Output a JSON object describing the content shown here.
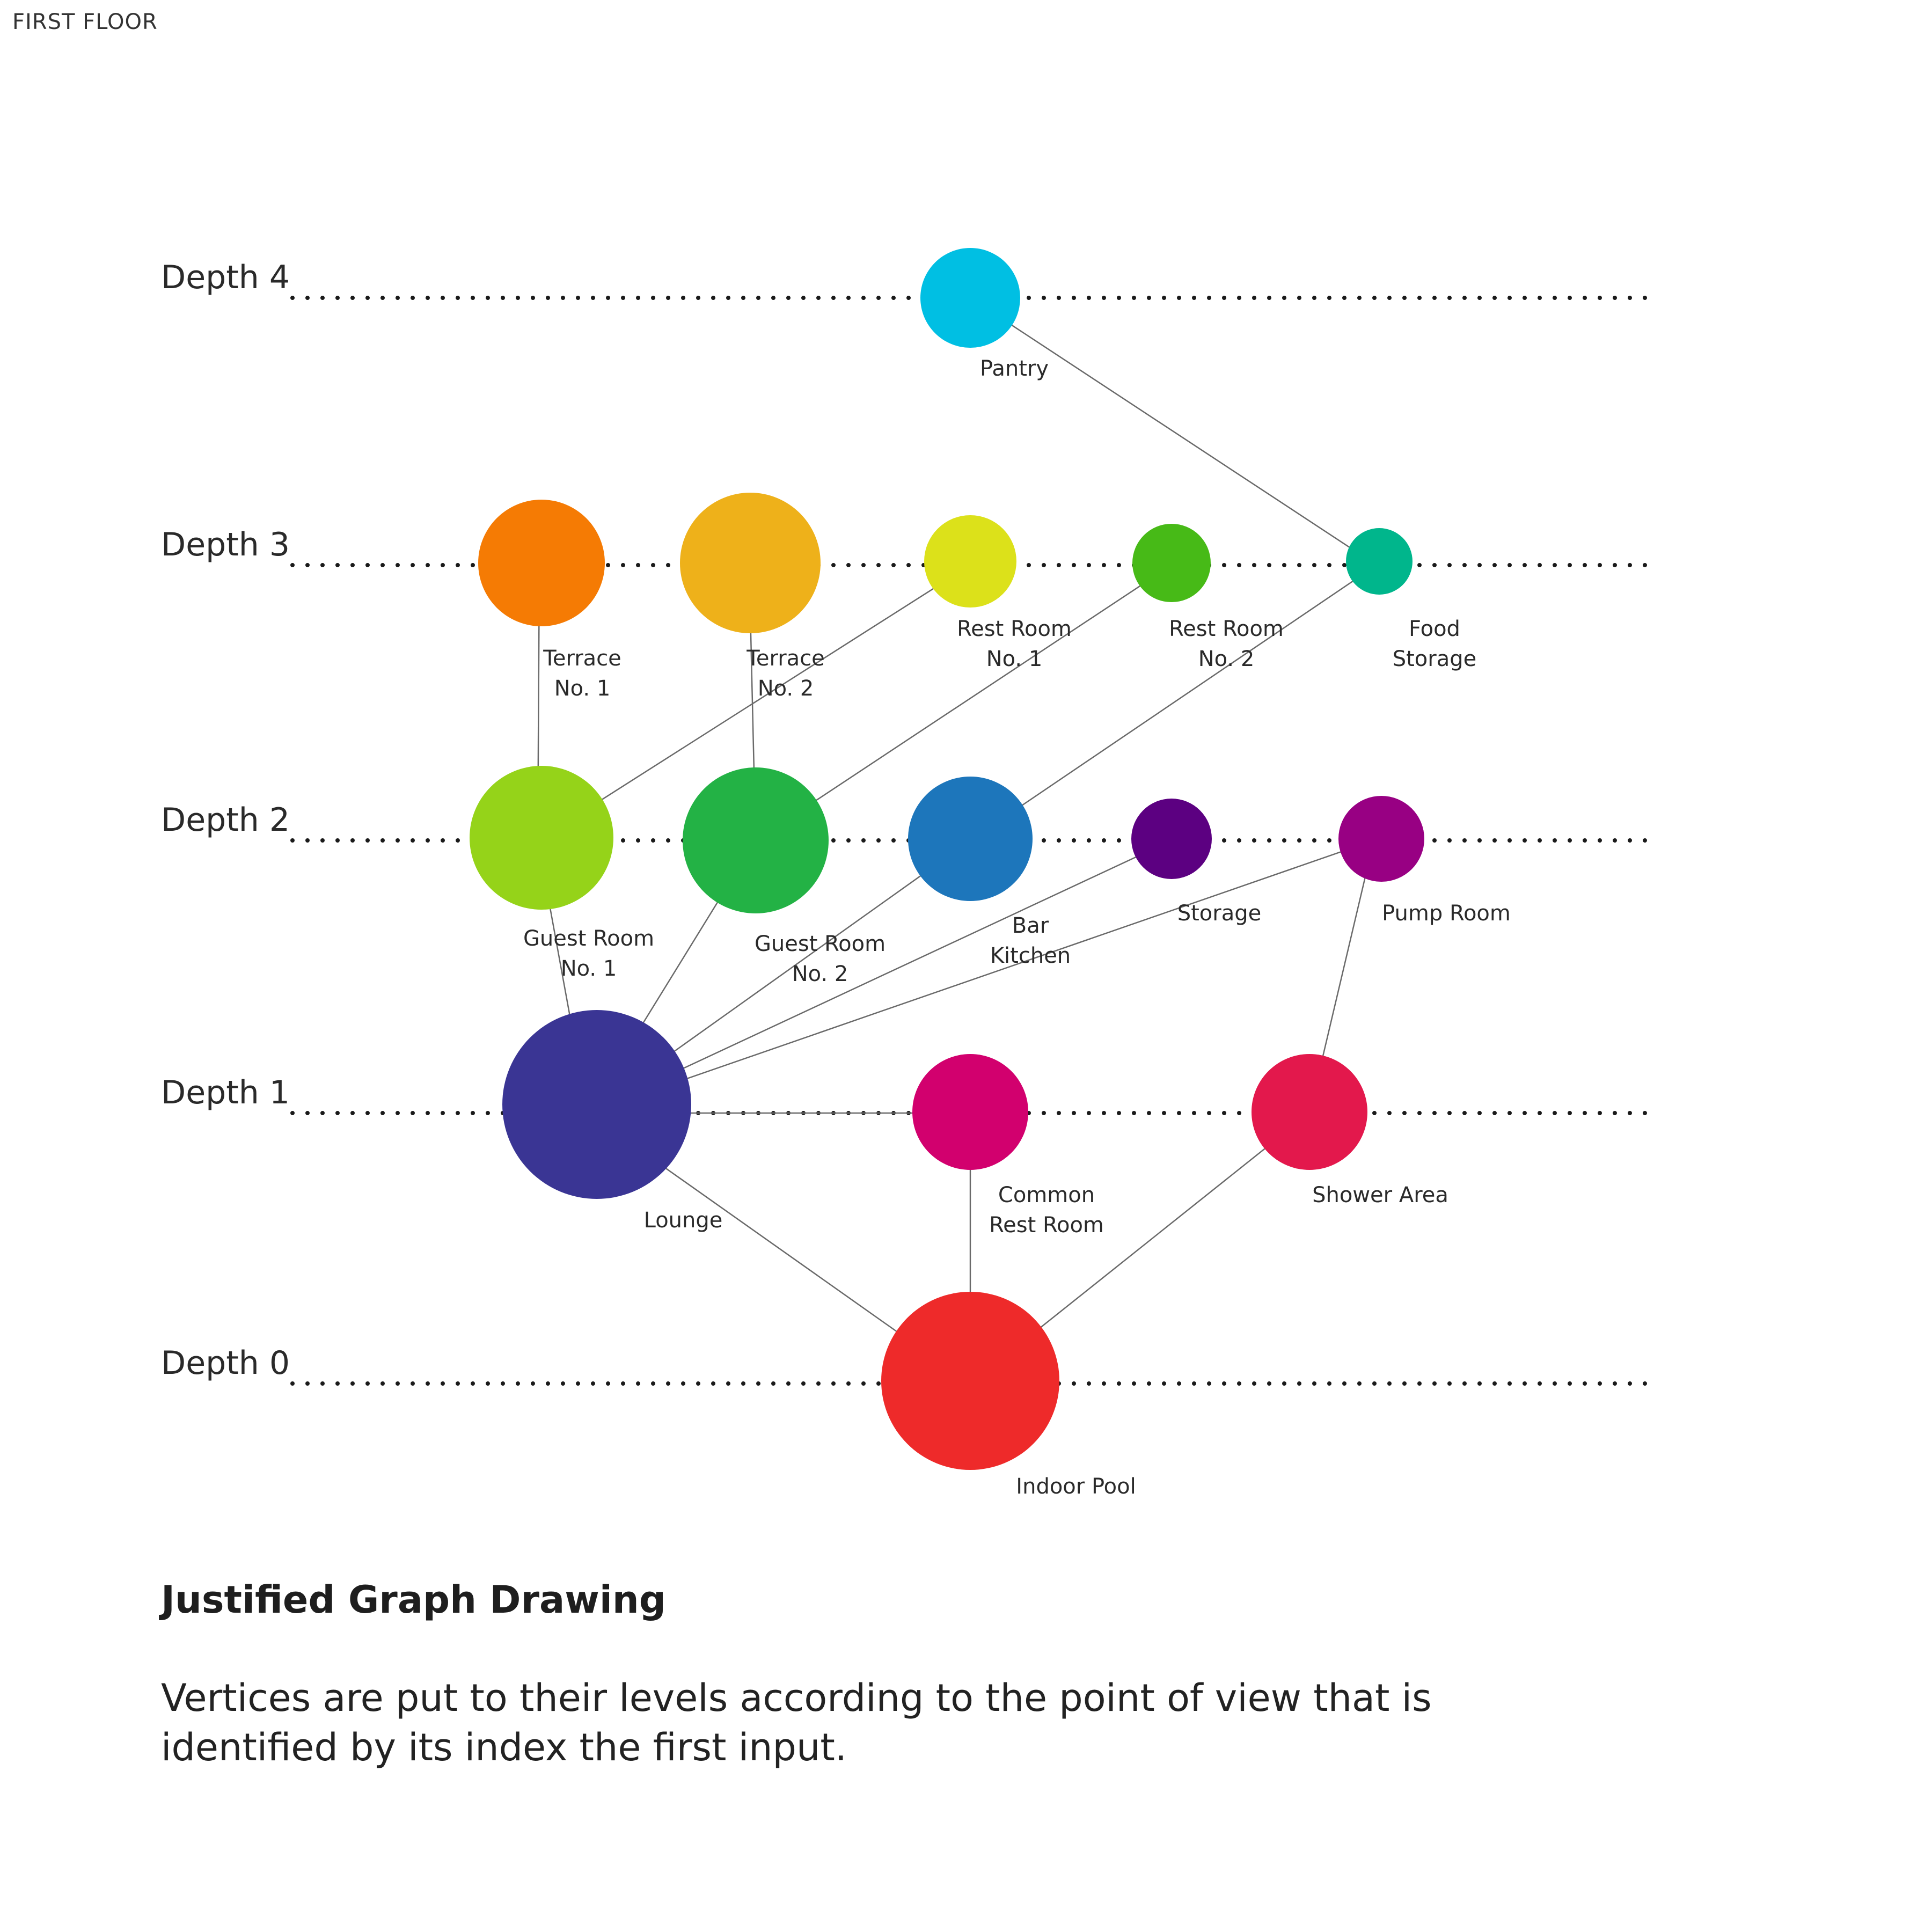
{
  "header": {
    "floor_label": "FIRST FLOOR"
  },
  "levels": [
    {
      "label": "Depth 4"
    },
    {
      "label": "Depth 3"
    },
    {
      "label": "Depth 2"
    },
    {
      "label": "Depth 1"
    },
    {
      "label": "Depth 0"
    }
  ],
  "nodes": [
    {
      "id": "pantry",
      "label": [
        "Pantry"
      ],
      "depth": 4,
      "color": "#00BFE3"
    },
    {
      "id": "terrace-1",
      "label": [
        "Terrace",
        "No. 1"
      ],
      "depth": 3,
      "color": "#F57B04"
    },
    {
      "id": "terrace-2",
      "label": [
        "Terrace",
        "No. 2"
      ],
      "depth": 3,
      "color": "#EEB11A"
    },
    {
      "id": "rest-room-1",
      "label": [
        "Rest Room",
        "No. 1"
      ],
      "depth": 3,
      "color": "#DCE11A"
    },
    {
      "id": "rest-room-2",
      "label": [
        "Rest Room",
        "No. 2"
      ],
      "depth": 3,
      "color": "#47BA17"
    },
    {
      "id": "food-storage",
      "label": [
        "Food",
        "Storage"
      ],
      "depth": 3,
      "color": "#00B68C"
    },
    {
      "id": "guest-room-1",
      "label": [
        "Guest Room",
        "No. 1"
      ],
      "depth": 2,
      "color": "#95D319"
    },
    {
      "id": "guest-room-2",
      "label": [
        "Guest Room",
        "No. 2"
      ],
      "depth": 2,
      "color": "#23B245"
    },
    {
      "id": "bar-kitchen",
      "label": [
        "Bar",
        "Kitchen"
      ],
      "depth": 2,
      "color": "#1D76BB"
    },
    {
      "id": "storage",
      "label": [
        "Storage"
      ],
      "depth": 2,
      "color": "#5C0081"
    },
    {
      "id": "pump-room",
      "label": [
        "Pump Room"
      ],
      "depth": 2,
      "color": "#980083"
    },
    {
      "id": "lounge",
      "label": [
        "Lounge"
      ],
      "depth": 1,
      "color": "#3A3594"
    },
    {
      "id": "common-rest-room",
      "label": [
        "Common",
        "Rest Room"
      ],
      "depth": 1,
      "color": "#D2006E"
    },
    {
      "id": "shower-area",
      "label": [
        "Shower Area"
      ],
      "depth": 1,
      "color": "#E3184C"
    },
    {
      "id": "indoor-pool",
      "label": [
        "Indoor Pool"
      ],
      "depth": 0,
      "color": "#EE2A2A"
    }
  ],
  "edges": [
    [
      "indoor-pool",
      "lounge"
    ],
    [
      "indoor-pool",
      "common-rest-room"
    ],
    [
      "indoor-pool",
      "shower-area"
    ],
    [
      "lounge",
      "common-rest-room"
    ],
    [
      "lounge",
      "guest-room-1"
    ],
    [
      "lounge",
      "guest-room-2"
    ],
    [
      "lounge",
      "bar-kitchen"
    ],
    [
      "lounge",
      "storage"
    ],
    [
      "lounge",
      "pump-room"
    ],
    [
      "shower-area",
      "pump-room"
    ],
    [
      "guest-room-1",
      "terrace-1"
    ],
    [
      "guest-room-1",
      "rest-room-1"
    ],
    [
      "guest-room-2",
      "terrace-2"
    ],
    [
      "guest-room-2",
      "rest-room-2"
    ],
    [
      "bar-kitchen",
      "food-storage"
    ],
    [
      "food-storage",
      "pantry"
    ]
  ],
  "caption": {
    "title": "Justified Graph Drawing",
    "body": "Vertices are put to their levels according to the point of view that is identified by its index the first input."
  }
}
